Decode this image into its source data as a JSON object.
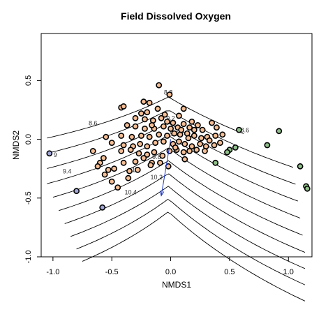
{
  "chart_data": {
    "type": "scatter",
    "title": "Field Dissolved Oxygen",
    "xlabel": "NMDS1",
    "ylabel": "NMDS2",
    "xlim": [
      -1.1,
      1.2
    ],
    "ylim": [
      -1.0,
      0.9
    ],
    "x_ticks": [
      -1.0,
      -0.5,
      0.0,
      0.5,
      1.0
    ],
    "x_tick_labels": [
      "-1.0",
      "-0.5",
      "0.0",
      "0.5",
      "1.0"
    ],
    "y_ticks": [
      -1.0,
      -0.5,
      0.0,
      0.5
    ],
    "y_tick_labels": [
      "-1.0",
      "-0.5",
      "0.0",
      "0.5"
    ],
    "grid": false,
    "colors": {
      "orange": "#f5be95",
      "green": "#8fbf8a",
      "blue": "#a0a6d6",
      "arrow": "#1a36c7"
    },
    "contour_levels": [
      8.6,
      8.8,
      9.0,
      9.2,
      9.4,
      9.6,
      9.8,
      10.0,
      10.2,
      10.4
    ],
    "contour_labels": [
      {
        "text": "8.6",
        "x": -0.66,
        "y": 0.12
      },
      {
        "text": "8.6",
        "x": 0.63,
        "y": 0.06
      },
      {
        "text": "8.8",
        "x": -0.02,
        "y": 0.38
      },
      {
        "text": "9",
        "x": -0.98,
        "y": -0.15
      },
      {
        "text": "9.2",
        "x": 0.0,
        "y": 0.16
      },
      {
        "text": "9.4",
        "x": -0.88,
        "y": -0.29
      },
      {
        "text": "9.6",
        "x": 0.03,
        "y": 0.03
      },
      {
        "text": "9.8",
        "x": -0.12,
        "y": -0.17
      },
      {
        "text": "10",
        "x": -0.3,
        "y": -0.28
      },
      {
        "text": "10.2",
        "x": -0.12,
        "y": -0.34
      },
      {
        "text": "10.4",
        "x": -0.34,
        "y": -0.47
      }
    ],
    "arrow": {
      "x0": 0.0,
      "y0": 0.0,
      "x1": -0.08,
      "y1": -0.48
    },
    "series": [
      {
        "color": "orange",
        "points": [
          [
            -0.1,
            0.46
          ],
          [
            -0.01,
            0.38
          ],
          [
            -0.42,
            0.27
          ],
          [
            -0.4,
            0.28
          ],
          [
            -0.23,
            0.32
          ],
          [
            -0.18,
            0.31
          ],
          [
            -0.25,
            0.22
          ],
          [
            -0.2,
            0.23
          ],
          [
            -0.11,
            0.26
          ],
          [
            -0.05,
            0.21
          ],
          [
            -0.3,
            0.18
          ],
          [
            -0.22,
            0.17
          ],
          [
            -0.15,
            0.16
          ],
          [
            -0.08,
            0.18
          ],
          [
            -0.03,
            0.15
          ],
          [
            0.02,
            0.14
          ],
          [
            0.07,
            0.2
          ],
          [
            0.11,
            0.26
          ],
          [
            0.18,
            0.15
          ],
          [
            0.23,
            0.12
          ],
          [
            -0.37,
            0.12
          ],
          [
            -0.3,
            0.11
          ],
          [
            -0.22,
            0.09
          ],
          [
            -0.14,
            0.09
          ],
          [
            -0.06,
            0.11
          ],
          [
            0.0,
            0.09
          ],
          [
            0.06,
            0.1
          ],
          [
            0.11,
            0.13
          ],
          [
            0.16,
            0.1
          ],
          [
            0.2,
            0.08
          ],
          [
            0.27,
            0.08
          ],
          [
            0.35,
            0.14
          ],
          [
            0.39,
            0.1
          ],
          [
            0.44,
            0.04
          ],
          [
            0.38,
            0.03
          ],
          [
            0.31,
            0.02
          ],
          [
            -0.42,
            0.03
          ],
          [
            -0.33,
            0.02
          ],
          [
            -0.25,
            0.03
          ],
          [
            -0.18,
            0.02
          ],
          [
            -0.1,
            0.04
          ],
          [
            -0.03,
            0.03
          ],
          [
            0.03,
            0.05
          ],
          [
            0.08,
            0.04
          ],
          [
            0.14,
            0.05
          ],
          [
            0.2,
            0.03
          ],
          [
            0.26,
            0.01
          ],
          [
            0.33,
            -0.01
          ],
          [
            0.42,
            -0.03
          ],
          [
            -0.55,
            0.02
          ],
          [
            -0.5,
            -0.03
          ],
          [
            -0.4,
            -0.05
          ],
          [
            -0.32,
            -0.06
          ],
          [
            -0.26,
            -0.04
          ],
          [
            -0.2,
            -0.06
          ],
          [
            -0.13,
            -0.03
          ],
          [
            -0.06,
            -0.02
          ],
          [
            0.02,
            -0.04
          ],
          [
            0.07,
            -0.02
          ],
          [
            0.12,
            -0.04
          ],
          [
            0.18,
            -0.06
          ],
          [
            0.25,
            -0.04
          ],
          [
            0.3,
            -0.06
          ],
          [
            0.37,
            -0.05
          ],
          [
            -0.66,
            -0.1
          ],
          [
            -0.57,
            -0.16
          ],
          [
            -0.42,
            -0.1
          ],
          [
            -0.34,
            -0.09
          ],
          [
            -0.27,
            -0.12
          ],
          [
            -0.2,
            -0.13
          ],
          [
            -0.14,
            -0.11
          ],
          [
            -0.07,
            -0.14
          ],
          [
            0.05,
            -0.09
          ],
          [
            0.11,
            -0.11
          ],
          [
            0.16,
            -0.1
          ],
          [
            0.22,
            -0.09
          ],
          [
            0.29,
            -0.1
          ],
          [
            -0.6,
            -0.2
          ],
          [
            -0.53,
            -0.26
          ],
          [
            -0.48,
            -0.25
          ],
          [
            -0.4,
            -0.2
          ],
          [
            -0.3,
            -0.19
          ],
          [
            -0.23,
            -0.16
          ],
          [
            -0.16,
            -0.2
          ],
          [
            -0.09,
            -0.2
          ],
          [
            0.12,
            -0.17
          ],
          [
            -0.62,
            -0.23
          ],
          [
            -0.56,
            -0.3
          ],
          [
            -0.5,
            -0.36
          ],
          [
            -0.35,
            -0.27
          ],
          [
            -0.28,
            -0.26
          ],
          [
            -0.17,
            -0.22
          ],
          [
            -0.02,
            -0.23
          ],
          [
            -0.45,
            -0.41
          ],
          [
            -0.36,
            -0.33
          ],
          [
            0.04,
            -0.07
          ],
          [
            -0.01,
            -0.1
          ],
          [
            0.09,
            0.08
          ],
          [
            0.15,
            0.01
          ],
          [
            -0.16,
            0.12
          ]
        ]
      },
      {
        "color": "green",
        "points": [
          [
            0.58,
            0.08
          ],
          [
            0.92,
            0.07
          ],
          [
            0.82,
            -0.05
          ],
          [
            0.55,
            -0.07
          ],
          [
            0.5,
            -0.09
          ],
          [
            0.48,
            -0.11
          ],
          [
            0.38,
            -0.2
          ],
          [
            1.1,
            -0.23
          ],
          [
            1.15,
            -0.4
          ],
          [
            1.16,
            -0.42
          ]
        ]
      },
      {
        "color": "blue",
        "points": [
          [
            -1.03,
            -0.12
          ],
          [
            -0.8,
            -0.44
          ],
          [
            -0.58,
            -0.58
          ]
        ]
      }
    ]
  }
}
